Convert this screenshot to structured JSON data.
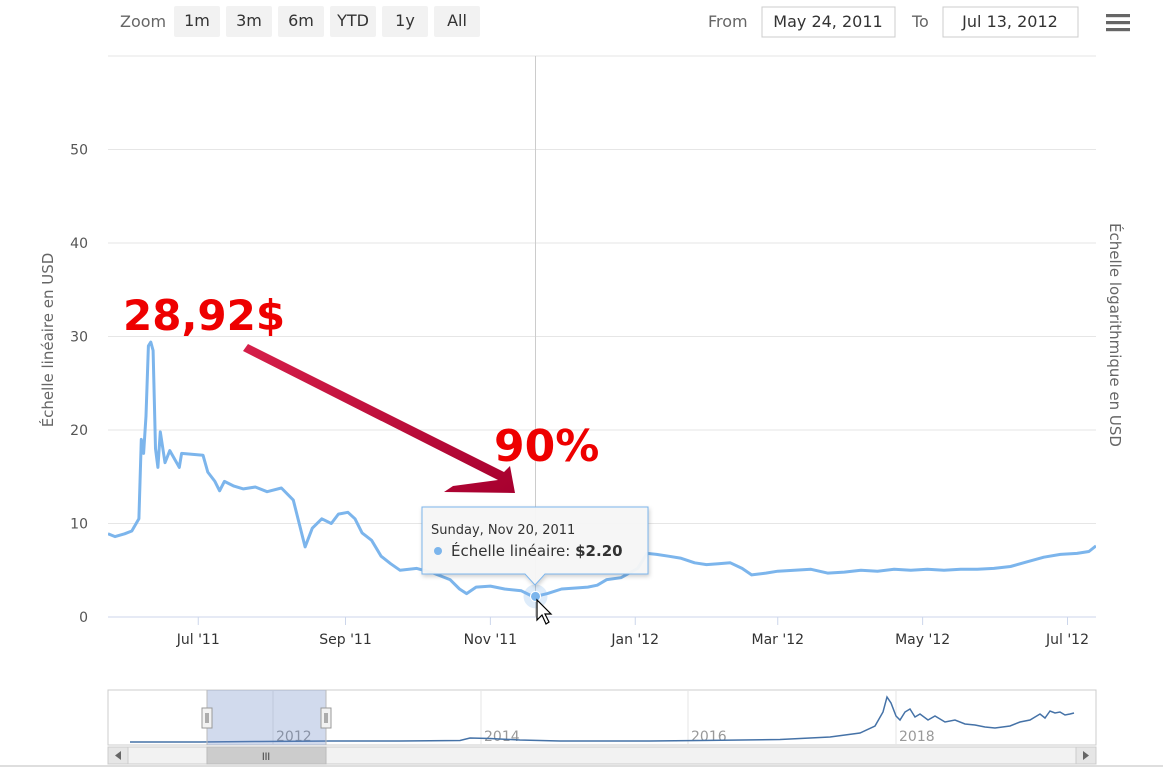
{
  "range_selector": {
    "zoom_label": "Zoom",
    "buttons": [
      "1m",
      "3m",
      "6m",
      "YTD",
      "1y",
      "All"
    ],
    "from_label": "From",
    "from_value": "May 24, 2011",
    "to_label": "To",
    "to_value": "Jul 13, 2012"
  },
  "menu_icon": "hamburger-menu-icon",
  "chart_data": {
    "type": "line",
    "title": "",
    "ylabel_left": "Échelle linéaire en USD",
    "ylabel_right": "Échelle logarithmique en USD",
    "ylim": [
      0,
      60
    ],
    "y_ticks": [
      "0",
      "10",
      "20",
      "30",
      "40",
      "50"
    ],
    "x_range": [
      "2011-05-24",
      "2012-07-13"
    ],
    "x_ticks": [
      {
        "date": "2011-07-01",
        "label": "Jul '11"
      },
      {
        "date": "2011-09-01",
        "label": "Sep '11"
      },
      {
        "date": "2011-11-01",
        "label": "Nov '11"
      },
      {
        "date": "2012-01-01",
        "label": "Jan '12"
      },
      {
        "date": "2012-03-01",
        "label": "Mar '12"
      },
      {
        "date": "2012-05-01",
        "label": "May '12"
      },
      {
        "date": "2012-07-01",
        "label": "Jul '12"
      }
    ],
    "grid": true,
    "color": "#7cb5ec",
    "series": [
      {
        "name": "Échelle linéaire",
        "points": [
          [
            "2011-05-24",
            8.9
          ],
          [
            "2011-05-27",
            8.6
          ],
          [
            "2011-05-31",
            8.9
          ],
          [
            "2011-06-03",
            9.2
          ],
          [
            "2011-06-06",
            10.5
          ],
          [
            "2011-06-07",
            19.0
          ],
          [
            "2011-06-08",
            17.5
          ],
          [
            "2011-06-09",
            21.5
          ],
          [
            "2011-06-10",
            29.0
          ],
          [
            "2011-06-11",
            29.4
          ],
          [
            "2011-06-12",
            28.5
          ],
          [
            "2011-06-13",
            18.0
          ],
          [
            "2011-06-14",
            16.0
          ],
          [
            "2011-06-15",
            19.8
          ],
          [
            "2011-06-17",
            16.5
          ],
          [
            "2011-06-19",
            17.8
          ],
          [
            "2011-06-23",
            16.0
          ],
          [
            "2011-06-24",
            17.5
          ],
          [
            "2011-07-03",
            17.3
          ],
          [
            "2011-07-05",
            15.5
          ],
          [
            "2011-07-08",
            14.5
          ],
          [
            "2011-07-10",
            13.5
          ],
          [
            "2011-07-12",
            14.5
          ],
          [
            "2011-07-16",
            14.0
          ],
          [
            "2011-07-20",
            13.7
          ],
          [
            "2011-07-25",
            13.9
          ],
          [
            "2011-07-30",
            13.4
          ],
          [
            "2011-08-05",
            13.8
          ],
          [
            "2011-08-10",
            12.5
          ],
          [
            "2011-08-13",
            9.5
          ],
          [
            "2011-08-15",
            7.5
          ],
          [
            "2011-08-18",
            9.5
          ],
          [
            "2011-08-22",
            10.5
          ],
          [
            "2011-08-26",
            10.0
          ],
          [
            "2011-08-29",
            11.0
          ],
          [
            "2011-09-02",
            11.2
          ],
          [
            "2011-09-05",
            10.5
          ],
          [
            "2011-09-08",
            9.0
          ],
          [
            "2011-09-12",
            8.2
          ],
          [
            "2011-09-16",
            6.5
          ],
          [
            "2011-09-20",
            5.7
          ],
          [
            "2011-09-24",
            5.0
          ],
          [
            "2011-10-01",
            5.2
          ],
          [
            "2011-10-08",
            4.7
          ],
          [
            "2011-10-15",
            4.0
          ],
          [
            "2011-10-19",
            3.0
          ],
          [
            "2011-10-22",
            2.5
          ],
          [
            "2011-10-26",
            3.2
          ],
          [
            "2011-11-01",
            3.3
          ],
          [
            "2011-11-07",
            3.0
          ],
          [
            "2011-11-14",
            2.8
          ],
          [
            "2011-11-18",
            2.3
          ],
          [
            "2011-11-20",
            2.2
          ],
          [
            "2011-11-25",
            2.5
          ],
          [
            "2011-12-01",
            3.0
          ],
          [
            "2011-12-07",
            3.1
          ],
          [
            "2011-12-12",
            3.2
          ],
          [
            "2011-12-16",
            3.4
          ],
          [
            "2011-12-20",
            4.0
          ],
          [
            "2011-12-26",
            4.2
          ],
          [
            "2012-01-02",
            5.2
          ],
          [
            "2012-01-06",
            6.8
          ],
          [
            "2012-01-10",
            6.7
          ],
          [
            "2012-01-15",
            6.5
          ],
          [
            "2012-01-20",
            6.3
          ],
          [
            "2012-01-26",
            5.8
          ],
          [
            "2012-01-31",
            5.6
          ],
          [
            "2012-02-05",
            5.7
          ],
          [
            "2012-02-10",
            5.8
          ],
          [
            "2012-02-15",
            5.2
          ],
          [
            "2012-02-19",
            4.5
          ],
          [
            "2012-02-25",
            4.7
          ],
          [
            "2012-03-01",
            4.9
          ],
          [
            "2012-03-08",
            5.0
          ],
          [
            "2012-03-15",
            5.1
          ],
          [
            "2012-03-22",
            4.7
          ],
          [
            "2012-03-29",
            4.8
          ],
          [
            "2012-04-05",
            5.0
          ],
          [
            "2012-04-12",
            4.9
          ],
          [
            "2012-04-19",
            5.1
          ],
          [
            "2012-04-26",
            5.0
          ],
          [
            "2012-05-03",
            5.1
          ],
          [
            "2012-05-10",
            5.0
          ],
          [
            "2012-05-17",
            5.1
          ],
          [
            "2012-05-24",
            5.1
          ],
          [
            "2012-05-31",
            5.2
          ],
          [
            "2012-06-07",
            5.4
          ],
          [
            "2012-06-14",
            5.9
          ],
          [
            "2012-06-21",
            6.4
          ],
          [
            "2012-06-28",
            6.7
          ],
          [
            "2012-07-05",
            6.8
          ],
          [
            "2012-07-10",
            7.0
          ],
          [
            "2012-07-13",
            7.6
          ]
        ]
      }
    ],
    "tooltip": {
      "date": "Sunday, Nov 20, 2011",
      "series_name": "Échelle linéaire",
      "value": "$2.20",
      "point": [
        "2011-11-20",
        2.2
      ]
    },
    "annotations": {
      "peak_label": "28,92$",
      "drop_label": "90%",
      "color": "#ee0000"
    },
    "navigator": {
      "labels": [
        "2012",
        "2014",
        "2016",
        "2018"
      ],
      "scrollbar_grip": "lll"
    }
  }
}
